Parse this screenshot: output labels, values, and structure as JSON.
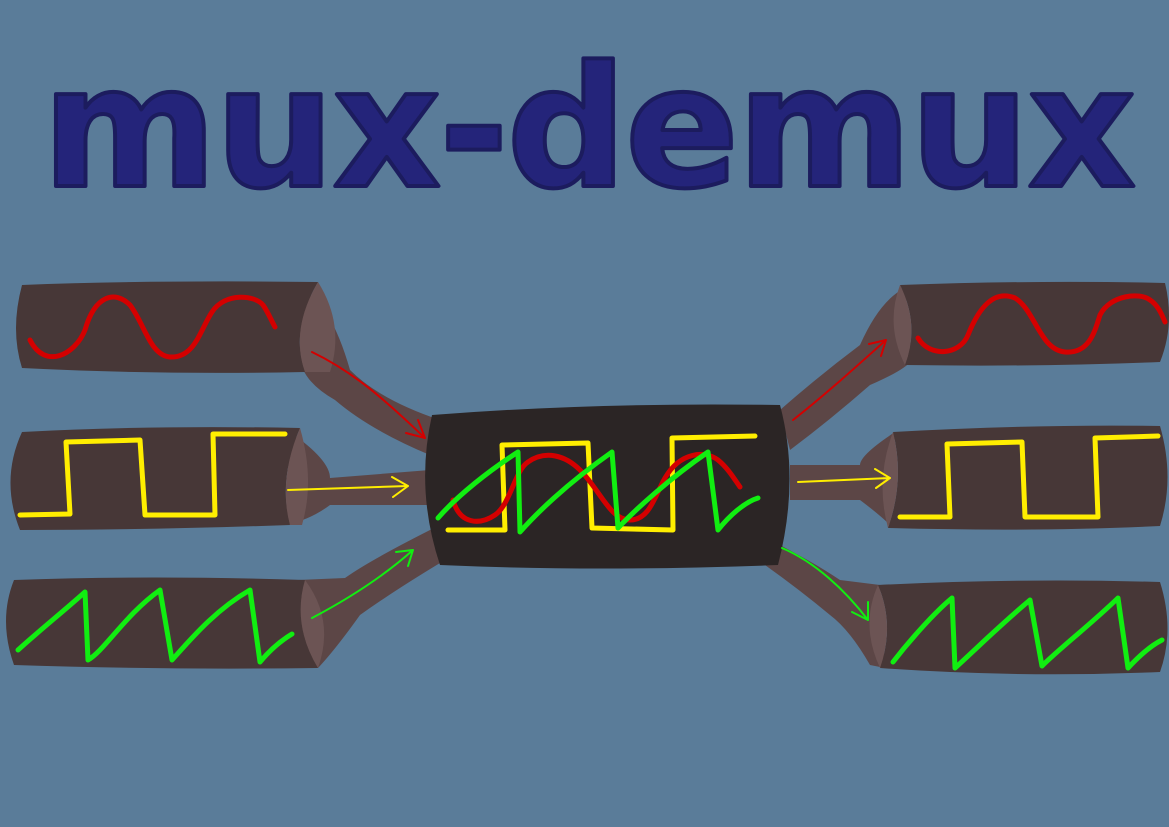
{
  "title": "mux-demux",
  "colors": {
    "background": "#5a7c99",
    "title_fill": "#24247a",
    "title_stroke": "#1c1c5e",
    "tube": "#473737",
    "tube_end": "#6c5454",
    "funnel": "#5c4646",
    "core": "#2b2525",
    "sine": "#d40000",
    "square": "#ffee00",
    "sawtooth": "#11ee11"
  },
  "inputs": [
    {
      "signal": "sine"
    },
    {
      "signal": "square"
    },
    {
      "signal": "sawtooth"
    }
  ],
  "outputs": [
    {
      "signal": "sine"
    },
    {
      "signal": "square"
    },
    {
      "signal": "sawtooth"
    }
  ],
  "multiplexed_signals": [
    "sine",
    "square",
    "sawtooth"
  ]
}
